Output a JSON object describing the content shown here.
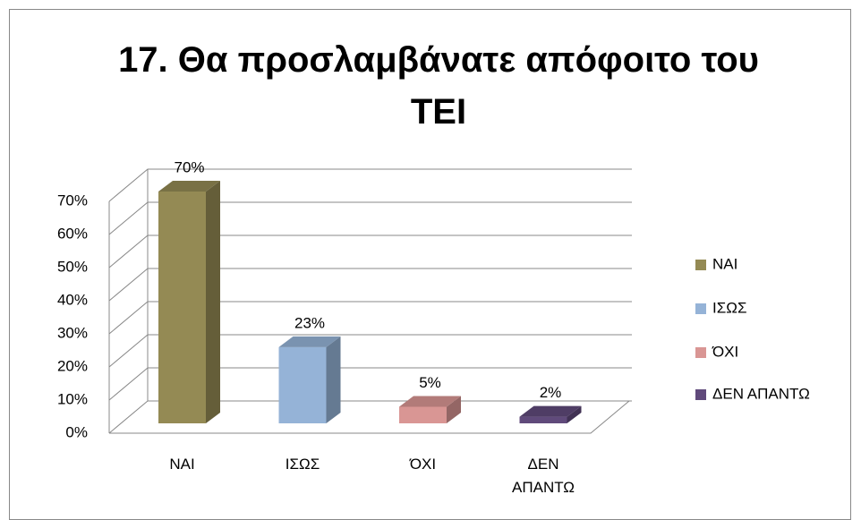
{
  "chart_data": {
    "type": "bar3d",
    "title": "17. Θα προσλαμβάνατε απόφοιτο του ΤΕΙ",
    "categories": [
      "ΝΑΙ",
      "ΙΣΩΣ",
      "ΌΧΙ",
      "ΔΕΝ ΑΠΑΝΤΩ"
    ],
    "values": [
      70,
      23,
      5,
      2
    ],
    "value_labels": [
      "70%",
      "23%",
      "5%",
      "2%"
    ],
    "colors": [
      "#948a54",
      "#95b3d7",
      "#d99694",
      "#604a7b"
    ],
    "ylim": [
      0,
      70
    ],
    "yticks": [
      {
        "value": 0,
        "label": "0%"
      },
      {
        "value": 10,
        "label": "10%"
      },
      {
        "value": 20,
        "label": "20%"
      },
      {
        "value": 30,
        "label": "30%"
      },
      {
        "value": 40,
        "label": "40%"
      },
      {
        "value": 50,
        "label": "50%"
      },
      {
        "value": 60,
        "label": "60%"
      },
      {
        "value": 70,
        "label": "70%"
      }
    ],
    "grid": true,
    "legend": "right"
  }
}
